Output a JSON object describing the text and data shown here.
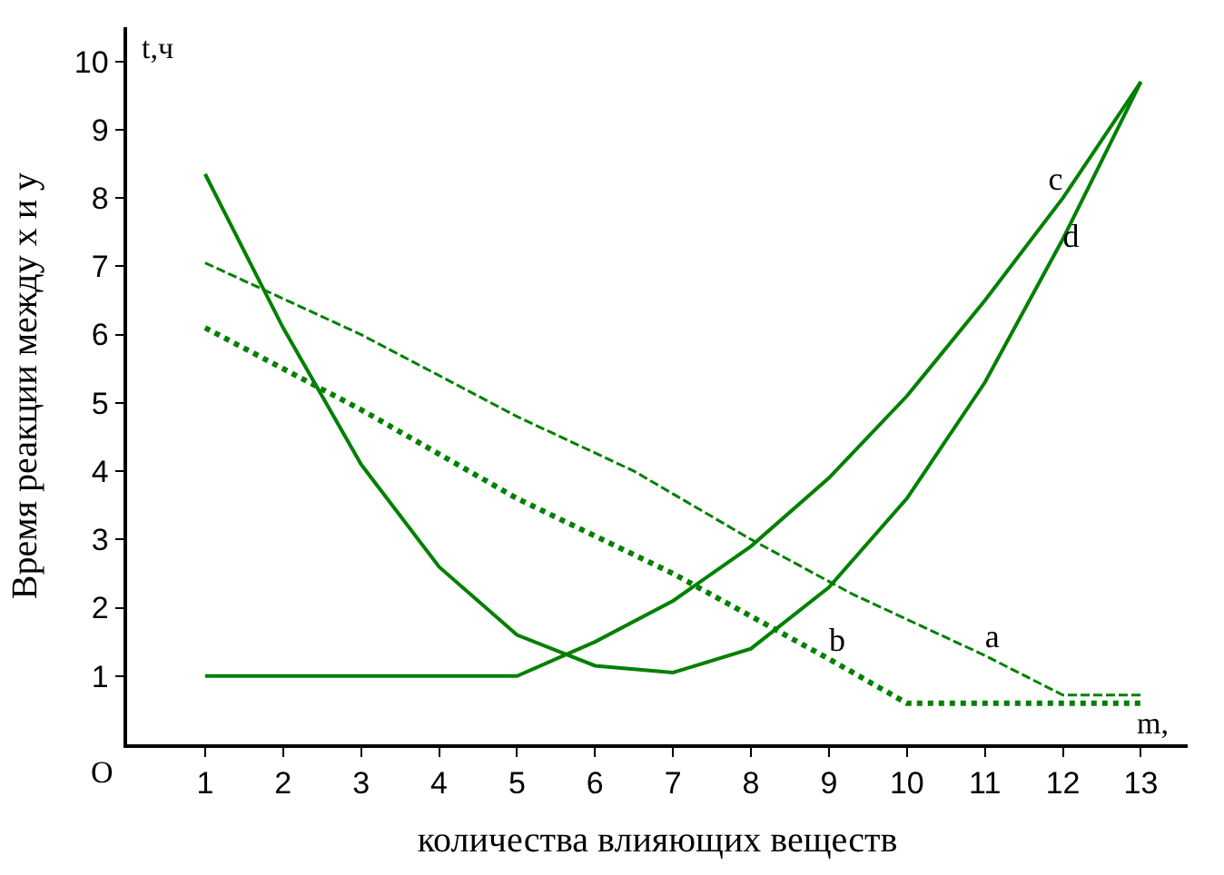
{
  "chart_data": {
    "type": "line",
    "xlabel": "количества влияющих веществ",
    "ylabel": "Время реакции между x и y",
    "x": [
      1,
      2,
      3,
      4,
      5,
      6,
      7,
      8,
      9,
      10,
      11,
      12,
      13
    ],
    "series": [
      {
        "name": "a",
        "color": "#008000",
        "line_style": "dashed",
        "x": [
          1,
          3,
          5,
          6.5,
          8,
          9.3,
          11,
          12,
          13
        ],
        "values": [
          7.05,
          6.0,
          4.8,
          4.0,
          3.0,
          2.2,
          1.3,
          0.72,
          0.72
        ]
      },
      {
        "name": "b",
        "color": "#008000",
        "line_style": "dotted",
        "x": [
          1,
          3,
          5,
          7,
          9,
          10,
          13
        ],
        "values": [
          6.1,
          4.9,
          3.6,
          2.5,
          1.25,
          0.6,
          0.6
        ]
      },
      {
        "name": "c",
        "color": "#008000",
        "line_style": "solid",
        "x": [
          1,
          5,
          6,
          7,
          8,
          9,
          10,
          11,
          12,
          13
        ],
        "values": [
          1,
          1,
          1.5,
          2.1,
          2.9,
          3.9,
          5.1,
          6.5,
          8.0,
          9.7
        ]
      },
      {
        "name": "d",
        "color": "#008000",
        "line_style": "solid",
        "values": [
          8.35,
          6.1,
          4.1,
          2.6,
          1.6,
          1.15,
          1.05,
          1.4,
          2.3,
          3.6,
          5.3,
          7.4,
          9.7
        ]
      }
    ],
    "annotations": [
      "t,ч",
      "m,",
      "O"
    ],
    "xlim": [
      0,
      13.6
    ],
    "ylim": [
      0,
      10.5
    ],
    "xticks": [
      1,
      2,
      3,
      4,
      5,
      6,
      7,
      8,
      9,
      10,
      11,
      12,
      13
    ],
    "yticks": [
      1,
      2,
      3,
      4,
      5,
      6,
      7,
      8,
      9,
      10
    ],
    "marker": "none"
  }
}
